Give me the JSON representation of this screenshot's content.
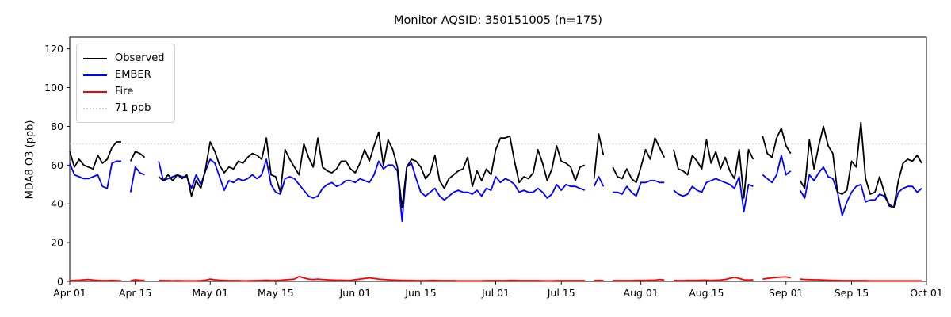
{
  "window": {
    "title": "Monitor AQSID: 350151005 (n=175)"
  },
  "chart_data": {
    "type": "line",
    "title": "Monitor AQSID: 350151005 (n=175)",
    "xlabel": "",
    "ylabel": "MDA8 O3 (ppb)",
    "ylim": [
      0,
      126
    ],
    "grid": false,
    "legend_position": "upper left",
    "x_domain": {
      "start": "Apr 01",
      "end": "Sep 30",
      "total_days": 183,
      "months": [
        {
          "name": "Apr",
          "days": 30
        },
        {
          "name": "May",
          "days": 31
        },
        {
          "name": "Jun",
          "days": 30
        },
        {
          "name": "Jul",
          "days": 31
        },
        {
          "name": "Aug",
          "days": 31
        },
        {
          "name": "Sep",
          "days": 30
        }
      ]
    },
    "x_ticks": [
      {
        "label": "Apr 01",
        "day": 0
      },
      {
        "label": "Apr 15",
        "day": 14
      },
      {
        "label": "May 01",
        "day": 30
      },
      {
        "label": "May 15",
        "day": 44
      },
      {
        "label": "Jun 01",
        "day": 61
      },
      {
        "label": "Jun 15",
        "day": 75
      },
      {
        "label": "Jul 01",
        "day": 91
      },
      {
        "label": "Jul 15",
        "day": 105
      },
      {
        "label": "Aug 01",
        "day": 122
      },
      {
        "label": "Aug 15",
        "day": 136
      },
      {
        "label": "Sep 01",
        "day": 153
      },
      {
        "label": "Sep 15",
        "day": 167
      },
      {
        "label": "Oct 01",
        "day": 183
      }
    ],
    "y_ticks": [
      0,
      20,
      40,
      60,
      80,
      100,
      120
    ],
    "threshold": {
      "label": "71 ppb",
      "value": 71,
      "color": "#d3d3d3",
      "style": "dotted"
    },
    "legend": [
      {
        "label": "Observed",
        "color": "#000000",
        "style": "solid"
      },
      {
        "label": "EMBER",
        "color": "#0000ff",
        "style": "solid"
      },
      {
        "label": "Fire",
        "color": "#ff0000",
        "style": "solid"
      },
      {
        "label": "71 ppb",
        "color": "#d3d3d3",
        "style": "dotted"
      }
    ],
    "series": [
      {
        "name": "Observed",
        "color": "#000000",
        "values": [
          67,
          59,
          63,
          60,
          59,
          58,
          65,
          61,
          63,
          69,
          72,
          72,
          null,
          62,
          67,
          66,
          64,
          null,
          null,
          54,
          52,
          55,
          52,
          55,
          53,
          55,
          44,
          52,
          48,
          58,
          72,
          67,
          60,
          56,
          59,
          58,
          62,
          61,
          64,
          66,
          65,
          63,
          74,
          55,
          54,
          46,
          68,
          63,
          59,
          55,
          71,
          64,
          59,
          74,
          59,
          57,
          56,
          58,
          62,
          62,
          58,
          56,
          61,
          68,
          62,
          70,
          77,
          60,
          73,
          68,
          59,
          38,
          59,
          63,
          62,
          59,
          53,
          56,
          65,
          52,
          48,
          53,
          55,
          57,
          58,
          64,
          49,
          57,
          52,
          58,
          55,
          68,
          74,
          74,
          75,
          62,
          51,
          54,
          53,
          56,
          68,
          61,
          52,
          58,
          70,
          62,
          61,
          59,
          52,
          59,
          60,
          null,
          53,
          76,
          65,
          null,
          59,
          54,
          53,
          58,
          53,
          51,
          59,
          68,
          63,
          74,
          69,
          64,
          null,
          68,
          58,
          57,
          55,
          65,
          62,
          58,
          73,
          61,
          67,
          58,
          64,
          57,
          53,
          68,
          43,
          68,
          63,
          null,
          75,
          66,
          64,
          74,
          79,
          70,
          66,
          null,
          52,
          48,
          73,
          58,
          70,
          80,
          70,
          66,
          46,
          45,
          47,
          62,
          59,
          82,
          53,
          45,
          46,
          54,
          46,
          39,
          38,
          52,
          61,
          63,
          62,
          65,
          61
        ]
      },
      {
        "name": "EMBER",
        "color": "#0000ff",
        "values": [
          61,
          55,
          54,
          53,
          53,
          54,
          55,
          49,
          48,
          61,
          62,
          62,
          null,
          46,
          59,
          56,
          55,
          null,
          null,
          62,
          52,
          53,
          54,
          55,
          54,
          54,
          48,
          55,
          50,
          57,
          63,
          61,
          54,
          47,
          52,
          51,
          53,
          52,
          53,
          55,
          53,
          55,
          63,
          50,
          46,
          45,
          53,
          54,
          53,
          50,
          47,
          44,
          43,
          44,
          48,
          50,
          51,
          49,
          50,
          52,
          52,
          51,
          53,
          52,
          51,
          55,
          62,
          58,
          60,
          60,
          57,
          31,
          59,
          61,
          53,
          46,
          44,
          46,
          48,
          44,
          42,
          44,
          46,
          47,
          46,
          46,
          45,
          47,
          44,
          48,
          47,
          54,
          51,
          53,
          52,
          50,
          46,
          47,
          46,
          46,
          48,
          46,
          43,
          45,
          50,
          47,
          50,
          49,
          49,
          48,
          47,
          null,
          49,
          54,
          49,
          null,
          46,
          46,
          45,
          49,
          46,
          44,
          51,
          51,
          52,
          52,
          51,
          51,
          null,
          47,
          45,
          44,
          45,
          49,
          47,
          46,
          51,
          52,
          53,
          52,
          51,
          50,
          48,
          54,
          36,
          50,
          49,
          null,
          55,
          53,
          51,
          55,
          65,
          55,
          57,
          null,
          47,
          43,
          55,
          52,
          56,
          59,
          54,
          53,
          46,
          34,
          41,
          46,
          49,
          50,
          41,
          42,
          42,
          45,
          44,
          40,
          38,
          46,
          48,
          49,
          49,
          46,
          48
        ]
      },
      {
        "name": "Fire",
        "color": "#ff0000",
        "values": [
          0.4,
          0.5,
          0.6,
          0.8,
          1.0,
          0.7,
          0.5,
          0.4,
          0.4,
          0.5,
          0.4,
          0.3,
          null,
          0.4,
          0.8,
          0.6,
          0.5,
          null,
          null,
          0.5,
          0.4,
          0.4,
          0.3,
          0.4,
          0.3,
          0.3,
          0.3,
          0.3,
          0.4,
          0.6,
          1.2,
          0.8,
          0.6,
          0.5,
          0.4,
          0.4,
          0.4,
          0.3,
          0.3,
          0.4,
          0.4,
          0.5,
          0.6,
          0.5,
          0.5,
          0.6,
          0.8,
          1.0,
          1.2,
          2.5,
          1.8,
          1.2,
          1.0,
          1.2,
          1.0,
          0.8,
          0.7,
          0.6,
          0.6,
          0.5,
          0.5,
          0.9,
          1.2,
          1.5,
          1.8,
          1.5,
          1.2,
          1.0,
          0.8,
          0.7,
          0.6,
          0.5,
          0.5,
          0.5,
          0.4,
          0.4,
          0.4,
          0.5,
          0.5,
          0.4,
          0.4,
          0.4,
          0.4,
          0.3,
          0.3,
          0.3,
          0.3,
          0.3,
          0.3,
          0.4,
          0.4,
          0.4,
          0.4,
          0.4,
          0.5,
          0.5,
          0.4,
          0.4,
          0.4,
          0.4,
          0.4,
          0.3,
          0.3,
          0.3,
          0.4,
          0.4,
          0.4,
          0.4,
          0.4,
          0.4,
          0.4,
          null,
          0.4,
          0.5,
          0.4,
          null,
          0.4,
          0.4,
          0.4,
          0.4,
          0.4,
          0.5,
          0.5,
          0.5,
          0.6,
          0.6,
          1.0,
          0.7,
          null,
          0.5,
          0.4,
          0.4,
          0.5,
          0.5,
          0.5,
          0.6,
          0.6,
          0.5,
          0.6,
          0.7,
          1.0,
          1.5,
          2.1,
          1.5,
          0.8,
          0.7,
          0.8,
          null,
          1.2,
          1.5,
          1.8,
          2.0,
          2.2,
          2.3,
          1.8,
          null,
          1.2,
          1.0,
          0.9,
          0.8,
          0.8,
          0.7,
          0.6,
          0.5,
          0.5,
          0.4,
          0.4,
          0.4,
          0.4,
          0.4,
          0.4,
          0.3,
          0.3,
          0.3,
          0.3,
          0.3,
          0.3,
          0.3,
          0.3,
          0.3,
          0.3,
          0.3,
          0.3
        ]
      }
    ]
  }
}
